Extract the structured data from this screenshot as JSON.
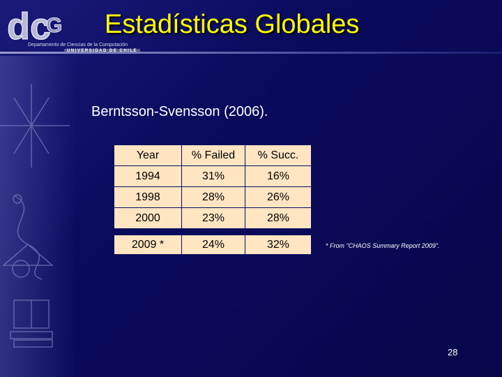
{
  "header": {
    "title": "Estadísticas Globales",
    "logo_text": "dcc",
    "department": "Departamento de Ciencias de la Computación",
    "university": "UNIVERSIDAD DE CHILE"
  },
  "subtitle": "Berntsson-Svensson (2006).",
  "table": {
    "headers": [
      "Year",
      "% Failed",
      "% Succ."
    ],
    "rows": [
      [
        "1994",
        "31%",
        "16%"
      ],
      [
        "1998",
        "28%",
        "26%"
      ],
      [
        "2000",
        "23%",
        "28%"
      ]
    ],
    "highlight_row": [
      "2009 *",
      "24%",
      "32%"
    ]
  },
  "note": "* From \"CHAOS Summary Report 2009\".",
  "page_number": "28",
  "colors": {
    "background": "#0b0b5e",
    "title": "#ffff00",
    "table_cell": "#ffe5c2"
  }
}
